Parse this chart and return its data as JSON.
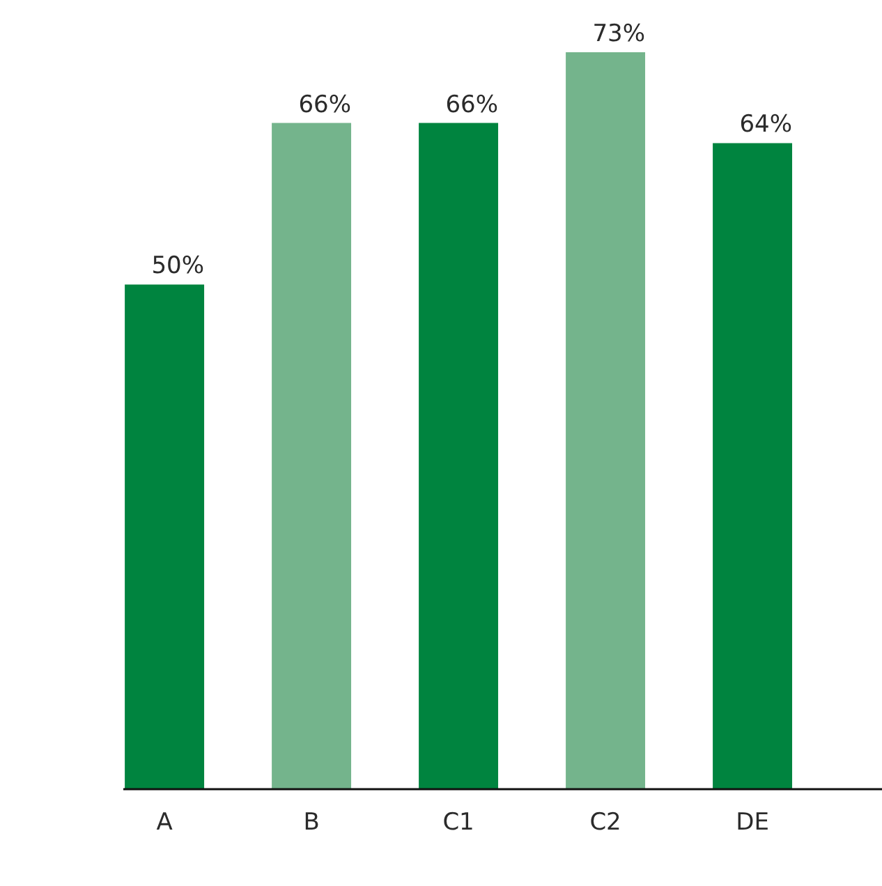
{
  "chart_data": {
    "type": "bar",
    "categories": [
      "A",
      "B",
      "C1",
      "C2",
      "DE"
    ],
    "values": [
      50,
      66,
      66,
      73,
      64
    ],
    "colors": [
      "#00843f",
      "#74b48c",
      "#00843f",
      "#74b48c",
      "#00843f"
    ],
    "value_labels": [
      "50%",
      "66%",
      "66%",
      "73%",
      "64%"
    ],
    "tick_labels": "x"
  }
}
